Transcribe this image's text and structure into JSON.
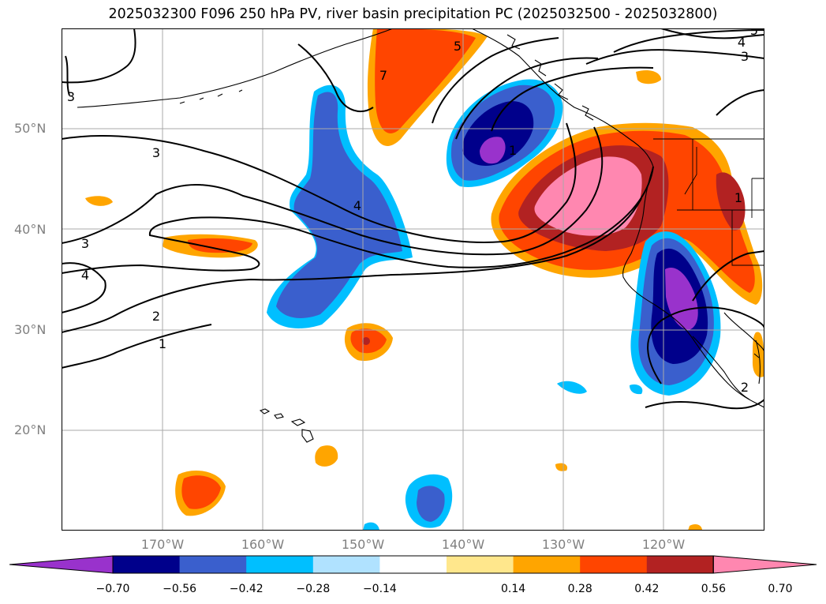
{
  "title": "2025032300 F096 250 hPa PV, river basin precipitation PC (2025032500 - 2025032800)",
  "map": {
    "lat_labels": [
      "50°N",
      "40°N",
      "30°N",
      "20°N"
    ],
    "lon_labels": [
      "170°W",
      "160°W",
      "150°W",
      "140°W",
      "130°W",
      "120°W"
    ],
    "contour_labels": [
      "3",
      "4",
      "3",
      "4",
      "2",
      "1",
      "7",
      "5",
      "4",
      "3",
      "5",
      "1",
      "2",
      "1",
      "3"
    ]
  },
  "colorbar": {
    "ticks": [
      "−0.70",
      "−0.56",
      "−0.42",
      "−0.28",
      "−0.14",
      "0.14",
      "0.28",
      "0.42",
      "0.56",
      "0.70"
    ],
    "colors": [
      "#9932cc",
      "#00008b",
      "#3a5fcd",
      "#00bfff",
      "#b0e2ff",
      "#ffffff",
      "#ffe78c",
      "#ffa500",
      "#ff4500",
      "#b22222",
      "#ff87b0"
    ]
  }
}
